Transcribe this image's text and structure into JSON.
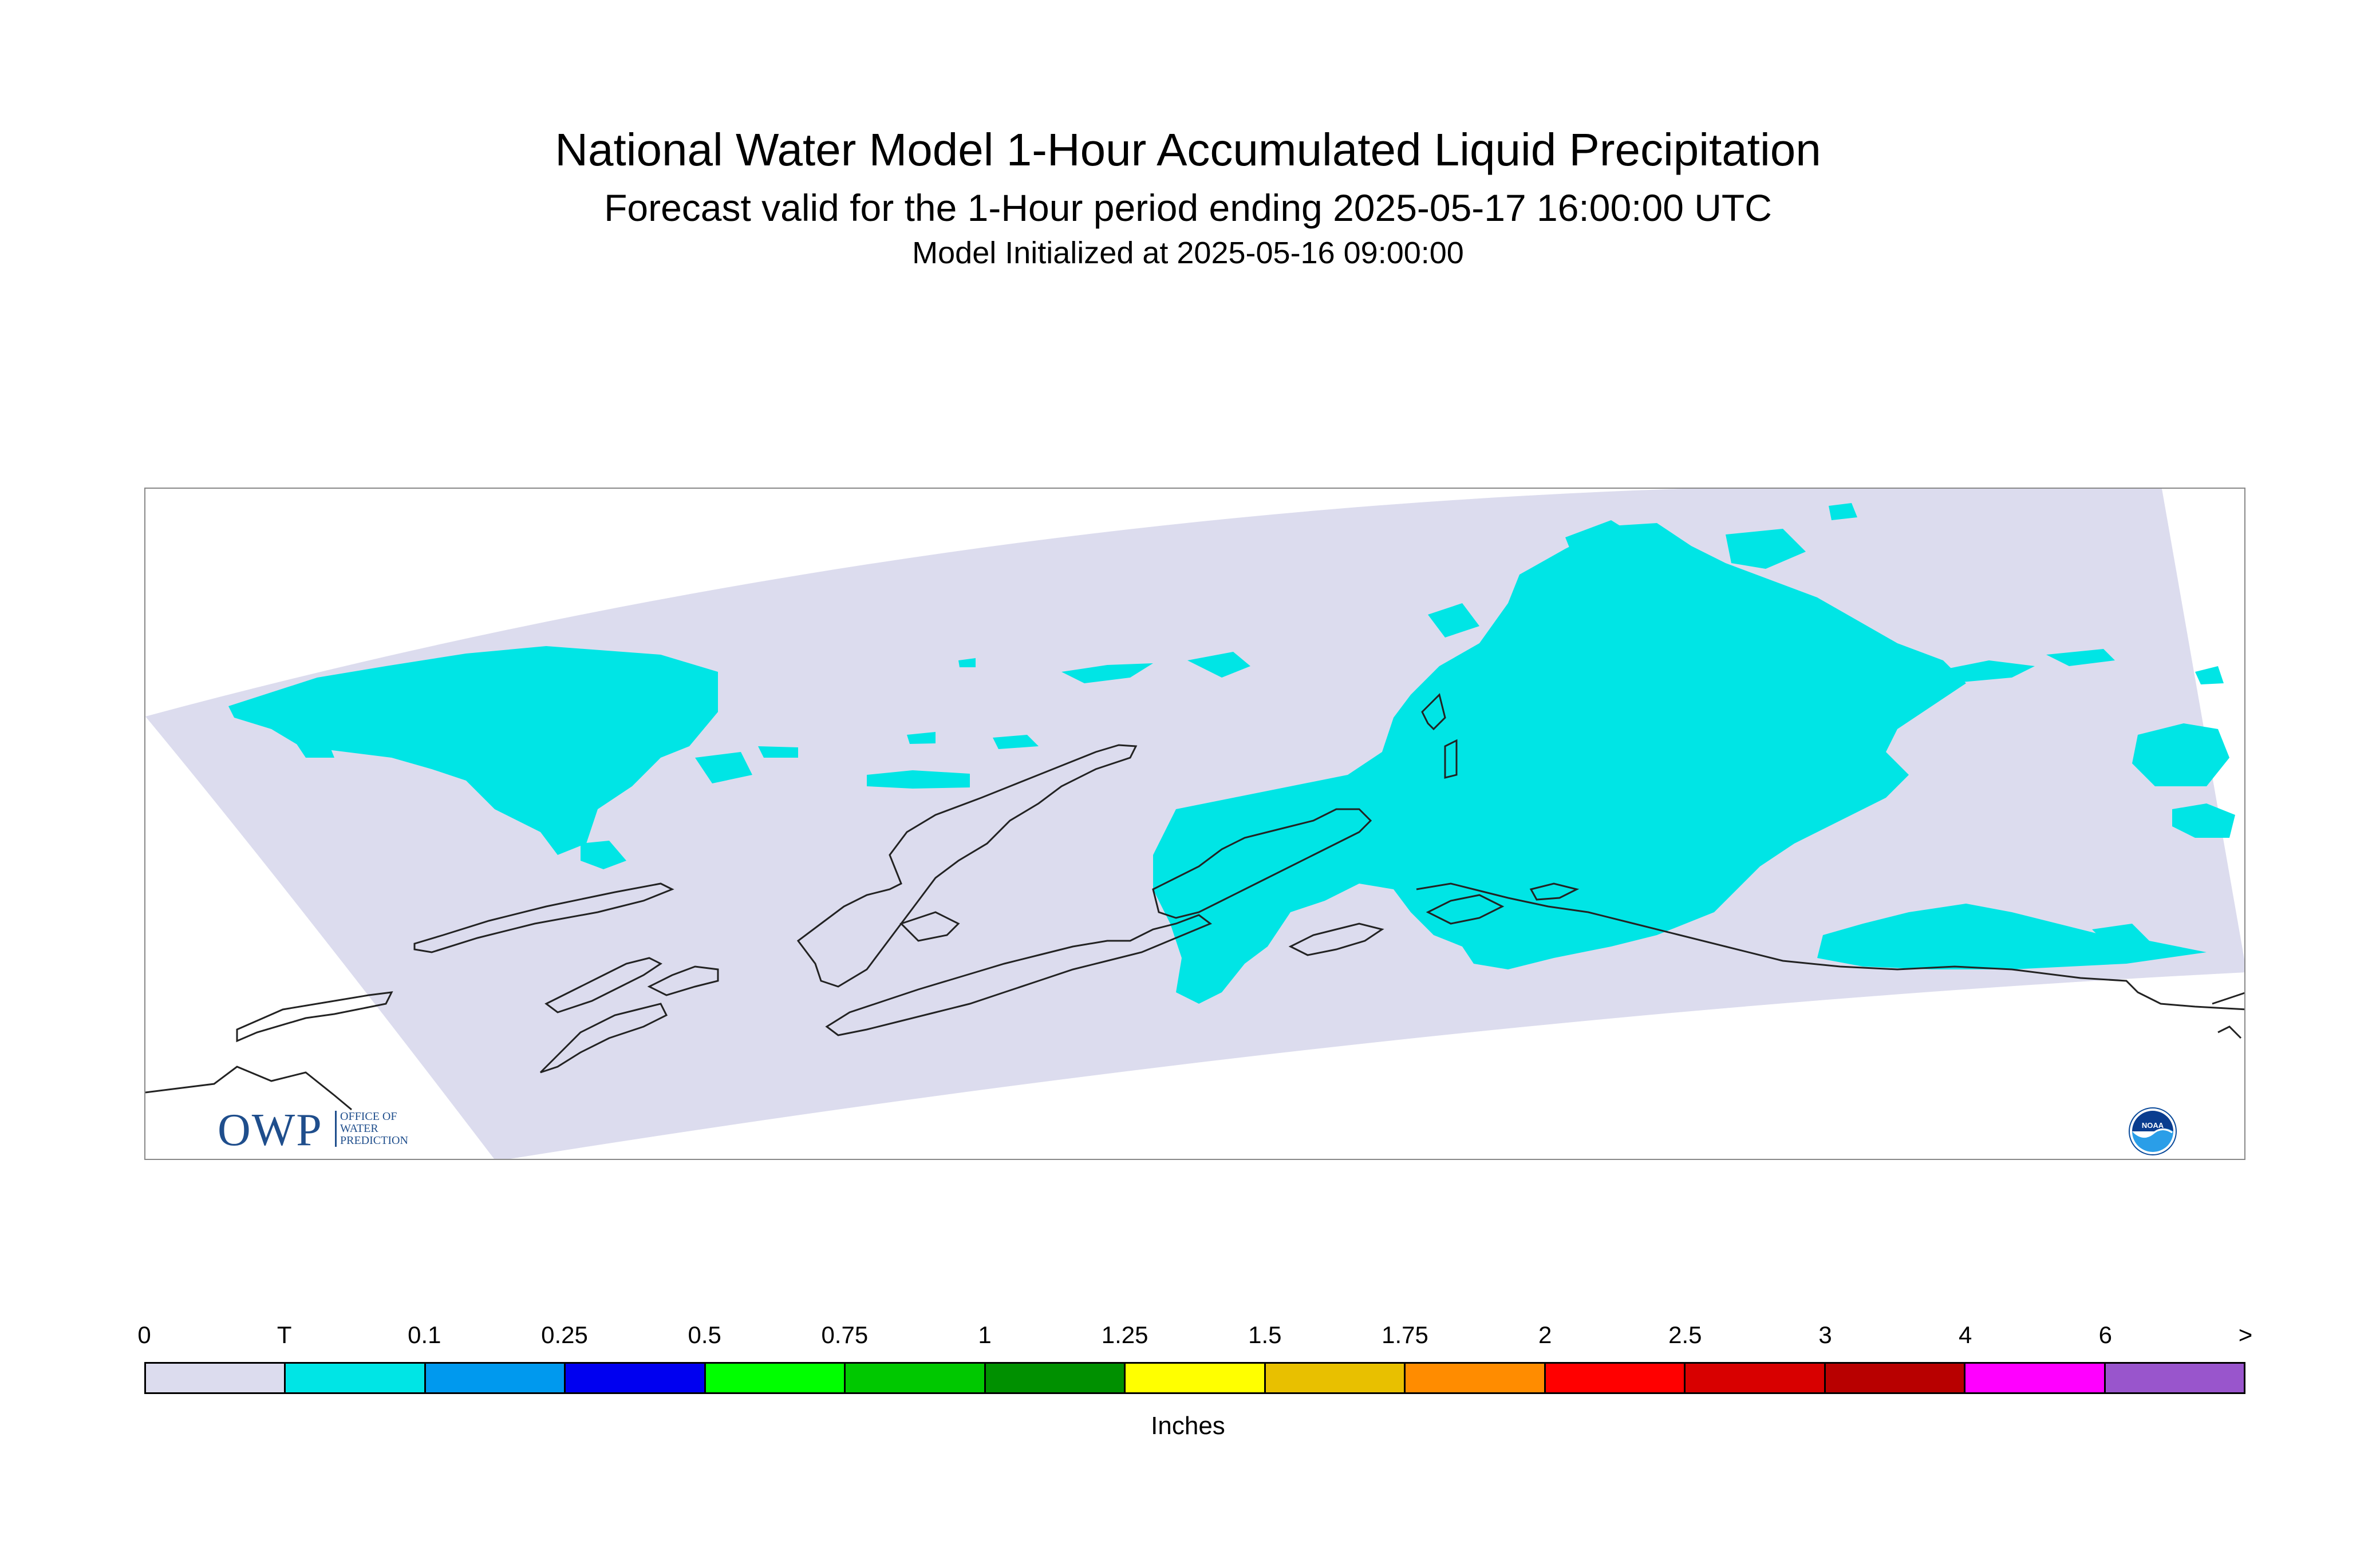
{
  "header": {
    "title": "National Water Model 1-Hour Accumulated Liquid Precipitation",
    "subtitle": "Forecast valid for the 1-Hour period ending 2025-05-17 16:00:00 UTC",
    "init": "Model Initialized at 2025-05-16 09:00:00"
  },
  "logos": {
    "owp_letters": "OWP",
    "owp_lines": [
      "OFFICE OF",
      "WATER",
      "PREDICTION"
    ],
    "noaa_text": "NOAA"
  },
  "legend": {
    "units": "Inches",
    "ticks": [
      "0",
      "T",
      "0.1",
      "0.25",
      "0.5",
      "0.75",
      "1",
      "1.25",
      "1.5",
      "1.75",
      "2",
      "2.5",
      "3",
      "4",
      "6",
      ">"
    ],
    "colors": [
      "#dcdcee",
      "#00e5e5",
      "#0099ee",
      "#0000f0",
      "#00ff00",
      "#00c800",
      "#009000",
      "#ffff00",
      "#e8c000",
      "#ff8c00",
      "#ff0000",
      "#d80000",
      "#b80000",
      "#ff00ff",
      "#9955cc"
    ]
  },
  "map": {
    "domain_fill": "#dcdcee",
    "precip_fill": "#00e5e5",
    "coast_color": "#222222"
  }
}
